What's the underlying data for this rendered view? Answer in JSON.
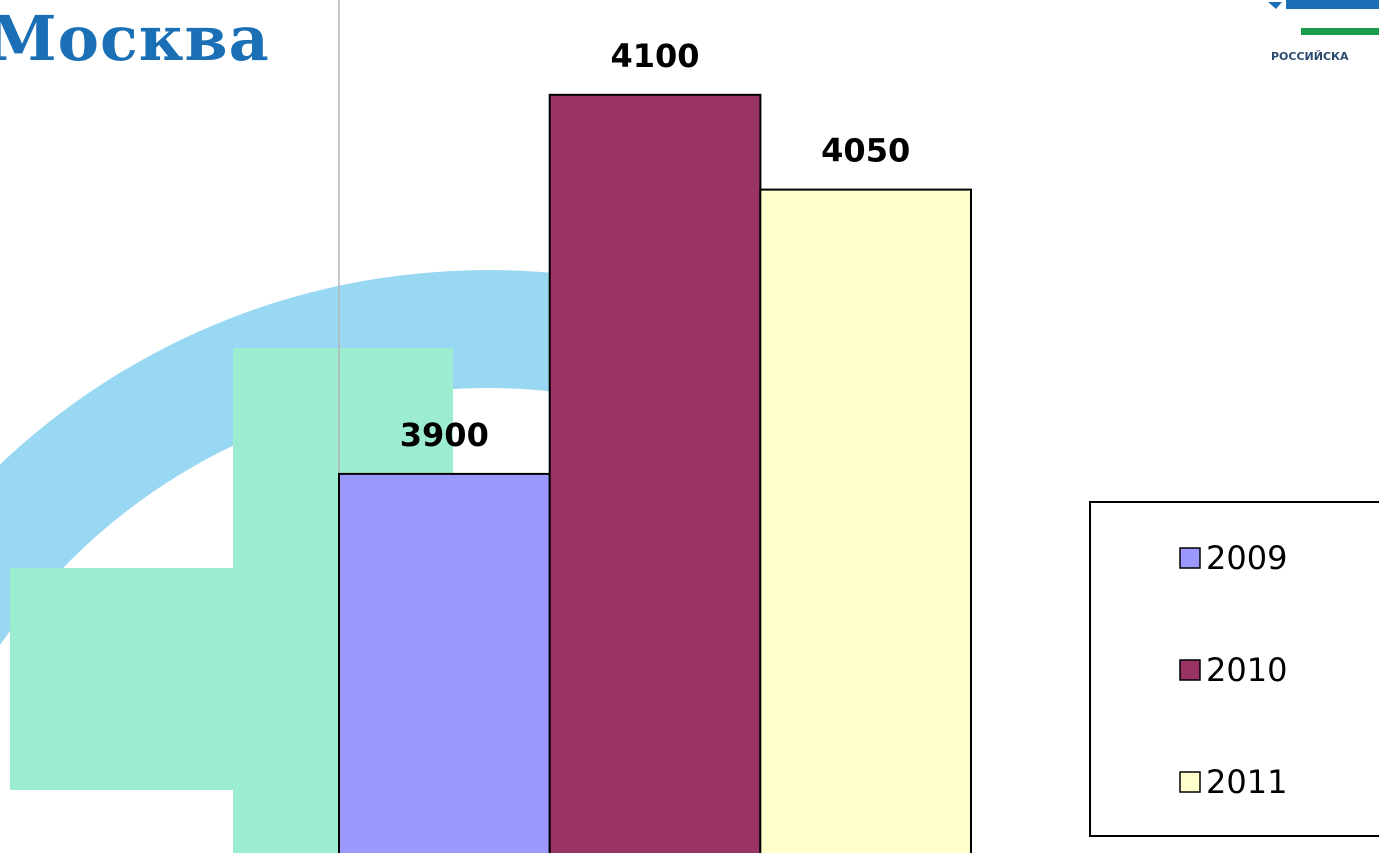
{
  "title": "Москва",
  "logo": {
    "caption": "РОССИЙСКА",
    "colors": {
      "blue": "#1a6fb5",
      "green": "#1a9b4a"
    }
  },
  "background_colors": {
    "ring": "#98d8f2",
    "cross": "#9cedd0"
  },
  "chart_data": {
    "type": "bar",
    "categories": [
      ""
    ],
    "series": [
      {
        "name": "2009",
        "values": [
          3900
        ],
        "color": "#9b99fe",
        "label": "3900"
      },
      {
        "name": "2010",
        "values": [
          4100
        ],
        "color": "#993366",
        "label": "4100"
      },
      {
        "name": "2011",
        "values": [
          4050
        ],
        "color": "#ffffcc",
        "label": "4050"
      }
    ],
    "ylim": [
      3700,
      4150
    ],
    "grid": false,
    "legend_position": "right"
  }
}
